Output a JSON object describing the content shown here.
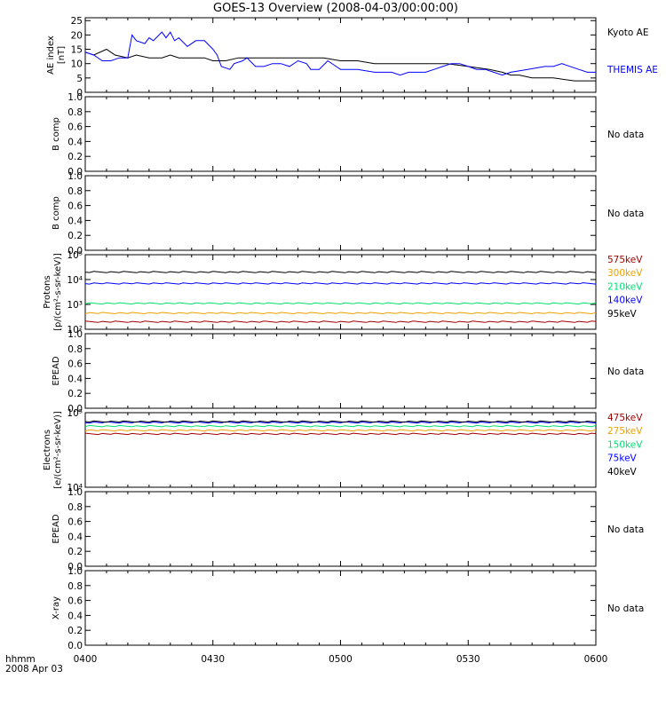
{
  "title": "GOES-13 Overview (2008-04-03/00:00:00)",
  "footer": {
    "hhmm": "hhmm",
    "date": "2008 Apr 03"
  },
  "colors": {
    "black": "#000000",
    "blue": "#0000ff",
    "red": "#a00000",
    "orange": "#f0a000",
    "green": "#00e070",
    "navy": "#0000a0"
  },
  "chart_data": [
    {
      "type": "line",
      "panel": "ae",
      "ylabel": [
        "AE index",
        "[nT]"
      ],
      "ylim": [
        0,
        26
      ],
      "yticks": [
        0,
        5,
        10,
        15,
        20,
        25
      ],
      "xlim": [
        "04:00",
        "06:00"
      ],
      "series": [
        {
          "name": "Kyoto AE",
          "color": "#000000",
          "x": [
            "04:00",
            "04:02",
            "04:05",
            "04:07",
            "04:10",
            "04:12",
            "04:15",
            "04:18",
            "04:20",
            "04:22",
            "04:25",
            "04:28",
            "04:30",
            "04:33",
            "04:36",
            "04:40",
            "04:44",
            "04:48",
            "04:52",
            "04:56",
            "05:00",
            "05:04",
            "05:08",
            "05:12",
            "05:16",
            "05:20",
            "05:25",
            "05:30",
            "05:35",
            "05:38",
            "05:40",
            "05:42",
            "05:45",
            "05:50",
            "05:55",
            "06:00"
          ],
          "y": [
            14,
            13,
            15,
            13,
            12,
            13,
            12,
            12,
            13,
            12,
            12,
            12,
            11,
            11,
            12,
            12,
            12,
            12,
            12,
            12,
            11,
            11,
            10,
            10,
            10,
            10,
            10,
            9,
            8,
            7,
            6,
            6,
            5,
            5,
            4,
            4
          ]
        },
        {
          "name": "THEMIS AE",
          "color": "#0000ff",
          "x": [
            "04:00",
            "04:02",
            "04:04",
            "04:06",
            "04:08",
            "04:10",
            "04:11",
            "04:12",
            "04:14",
            "04:15",
            "04:16",
            "04:18",
            "04:19",
            "04:20",
            "04:21",
            "04:22",
            "04:24",
            "04:26",
            "04:28",
            "04:30",
            "04:31",
            "04:32",
            "04:34",
            "04:35",
            "04:37",
            "04:38",
            "04:40",
            "04:42",
            "04:44",
            "04:46",
            "04:48",
            "04:50",
            "04:52",
            "04:53",
            "04:55",
            "04:57",
            "05:00",
            "05:04",
            "05:08",
            "05:12",
            "05:14",
            "05:16",
            "05:18",
            "05:20",
            "05:22",
            "05:24",
            "05:26",
            "05:28",
            "05:30",
            "05:32",
            "05:34",
            "05:36",
            "05:38",
            "05:40",
            "05:44",
            "05:48",
            "05:50",
            "05:52",
            "05:56",
            "05:58",
            "06:00"
          ],
          "y": [
            14,
            13,
            11,
            11,
            12,
            12,
            20,
            18,
            17,
            19,
            18,
            21,
            19,
            21,
            18,
            19,
            16,
            18,
            18,
            15,
            13,
            9,
            8,
            10,
            11,
            12,
            9,
            9,
            10,
            10,
            9,
            11,
            10,
            8,
            8,
            11,
            8,
            8,
            7,
            7,
            6,
            7,
            7,
            7,
            8,
            9,
            10,
            10,
            9,
            8,
            8,
            7,
            6,
            7,
            8,
            9,
            9,
            10,
            8,
            7,
            7
          ]
        }
      ]
    },
    {
      "type": "line",
      "panel": "bcomp1",
      "ylabel": [
        "B comp"
      ],
      "ylim": [
        0,
        1
      ],
      "yticks": [
        "0.0",
        "0.2",
        "0.4",
        "0.6",
        "0.8",
        "1.0"
      ],
      "status": "No data"
    },
    {
      "type": "line",
      "panel": "bcomp2",
      "ylabel": [
        "B comp"
      ],
      "ylim": [
        0,
        1
      ],
      "yticks": [
        "0.0",
        "0.2",
        "0.4",
        "0.6",
        "0.8",
        "1.0"
      ],
      "status": "No data"
    },
    {
      "type": "line",
      "panel": "protons",
      "scale": "log",
      "ylabel": [
        "Protons",
        "[p/(cm²-s-sr-keV)]"
      ],
      "ylim": [
        100,
        100000
      ],
      "yticks": [
        "10²",
        "10³",
        "10⁴",
        "10⁵"
      ],
      "series": [
        {
          "name": "575keV",
          "color": "#a00000",
          "value": 200
        },
        {
          "name": "300keV",
          "color": "#f0a000",
          "value": 450
        },
        {
          "name": "210keV",
          "color": "#00e070",
          "value": 1100
        },
        {
          "name": "140keV",
          "color": "#0000ff",
          "value": 7000
        },
        {
          "name": "95keV",
          "color": "#000000",
          "value": 20000
        }
      ]
    },
    {
      "type": "line",
      "panel": "epead1",
      "ylabel": [
        "EPEAD"
      ],
      "ylim": [
        0,
        1
      ],
      "yticks": [
        "0.0",
        "0.2",
        "0.4",
        "0.6",
        "0.8",
        "1.0"
      ],
      "status": "No data"
    },
    {
      "type": "line",
      "panel": "electrons",
      "scale": "log",
      "ylabel": [
        "Electrons",
        "[e/(cm²-s-sr-keV)]"
      ],
      "ylim": [
        10000,
        100000
      ],
      "yticks": [
        "10⁴",
        "10⁵"
      ],
      "series": [
        {
          "name": "475keV",
          "color": "#a00000",
          "value": 52000
        },
        {
          "name": "275keV",
          "color": "#f0a000",
          "value": 58000
        },
        {
          "name": "150keV",
          "color": "#00e070",
          "value": 66000
        },
        {
          "name": "75keV",
          "color": "#0000ff",
          "value": 74000
        },
        {
          "name": "40keV",
          "color": "#000000",
          "value": 76000
        }
      ]
    },
    {
      "type": "line",
      "panel": "epead2",
      "ylabel": [
        "EPEAD"
      ],
      "ylim": [
        0,
        1
      ],
      "yticks": [
        "0.0",
        "0.2",
        "0.4",
        "0.6",
        "0.8",
        "1.0"
      ],
      "status": "No data"
    },
    {
      "type": "line",
      "panel": "xray",
      "ylabel": [
        "X-ray"
      ],
      "ylim": [
        0,
        1
      ],
      "yticks": [
        "0.0",
        "0.2",
        "0.4",
        "0.6",
        "0.8",
        "1.0"
      ],
      "status": "No data"
    }
  ],
  "xaxis": {
    "ticks": [
      "0400",
      "0430",
      "0500",
      "0530",
      "0600"
    ],
    "minutes": [
      0,
      30,
      60,
      90,
      120
    ]
  }
}
